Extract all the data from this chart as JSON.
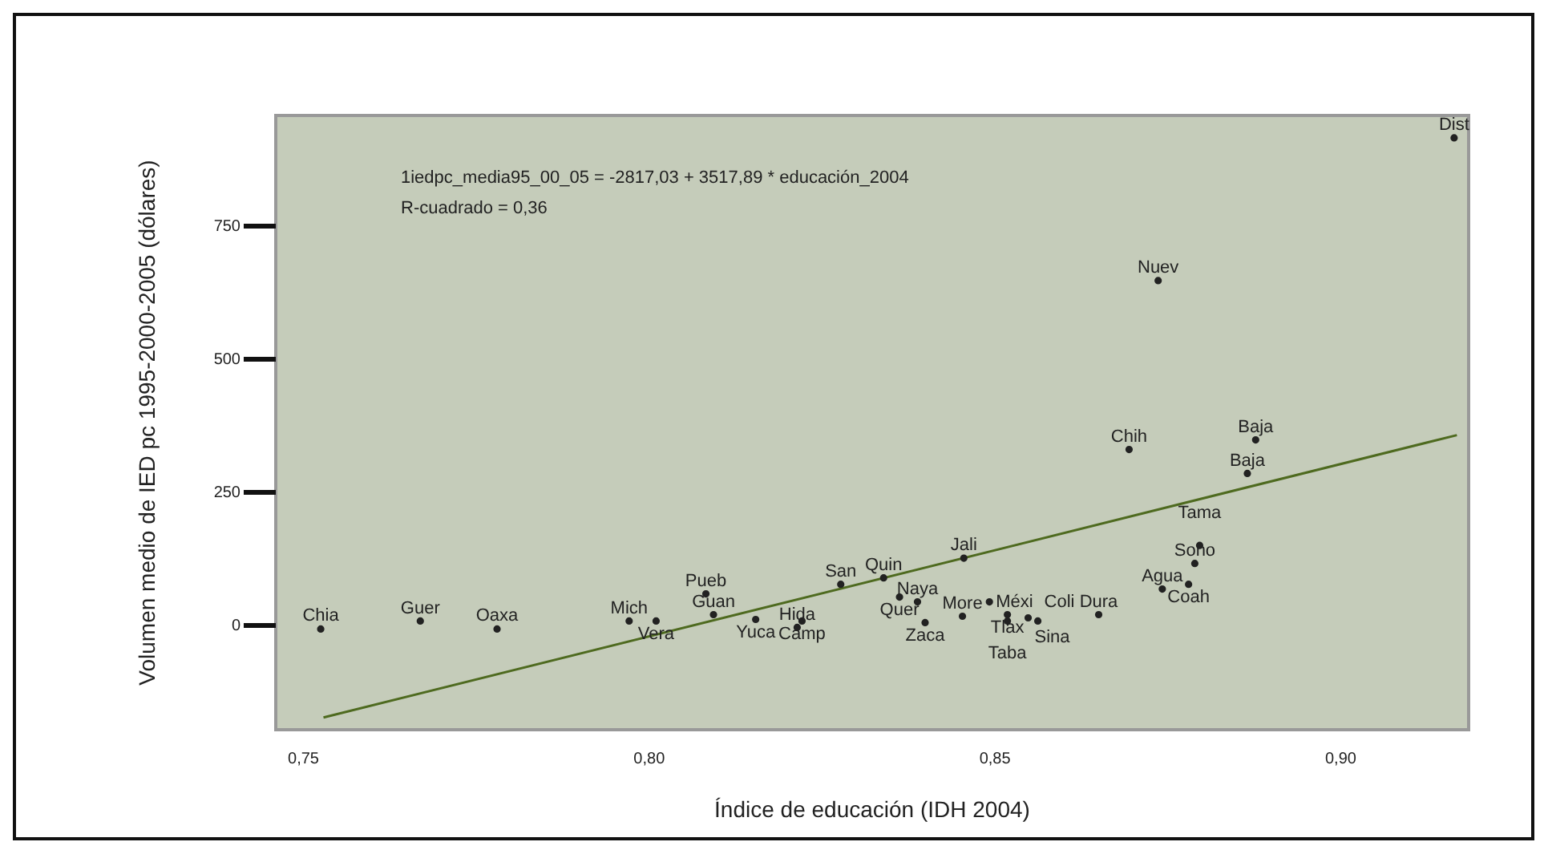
{
  "chart_data": {
    "type": "scatter",
    "xlabel": "Índice de educación (IDH 2004)",
    "ylabel": "Volumen medio de IED pc 1995-2000-2005 (dólares)",
    "annotations": [
      "1iedpc_media95_00_05 = -2817,03 + 3517,89 * educación_2004",
      "R-cuadrado = 0,36"
    ],
    "xlim": [
      0.746,
      0.9185
    ],
    "ylim": [
      -195,
      958
    ],
    "xticks": [
      {
        "value": 0.75,
        "label": "0,75"
      },
      {
        "value": 0.8,
        "label": "0,80"
      },
      {
        "value": 0.85,
        "label": "0,85"
      },
      {
        "value": 0.9,
        "label": "0,90"
      }
    ],
    "yticks": [
      0,
      250,
      500,
      750
    ],
    "series": [
      {
        "type": "scatter",
        "marker": "circle",
        "color": "#222222",
        "x": [
          0.7525,
          0.7669,
          0.778,
          0.7971,
          0.801,
          0.8082,
          0.8093,
          0.8154,
          0.8221,
          0.8214,
          0.8277,
          0.8339,
          0.8362,
          0.8388,
          0.8399,
          0.8455,
          0.8492,
          0.8453,
          0.8518,
          0.8518,
          0.8548,
          0.8562,
          0.865,
          0.8742,
          0.878,
          0.8789,
          0.8796,
          0.8694,
          0.8877,
          0.8865,
          0.8736,
          0.9164
        ],
        "values": [
          -6,
          9,
          -6,
          9,
          9,
          60,
          21,
          12,
          9,
          -3,
          78,
          90,
          54,
          45,
          6,
          127,
          45,
          18,
          21,
          9,
          15,
          9,
          21,
          69,
          78,
          117,
          151,
          331,
          349,
          286,
          648,
          916
        ],
        "value_labels": [
          "Chia",
          "Guer",
          "Oaxa",
          "Mich",
          "Vera",
          "Pueb",
          "Guan",
          "Yuca",
          "Camp",
          "Hida",
          "San",
          "Quin",
          "Quer",
          "Naya",
          "Zaca",
          "Jali",
          "Méxi",
          "More",
          "Tlax",
          "Taba",
          "Sina",
          "Coli",
          "Dura",
          "Agua",
          "Coah",
          "Sono",
          "Tama",
          "Chih",
          "Baja",
          "Baja",
          "Nuev",
          "Dist"
        ]
      },
      {
        "type": "line",
        "marker": "none",
        "color": "#4e6a1f",
        "x": [
          0.7529,
          0.9168
        ],
        "values": [
          -172,
          358
        ]
      }
    ]
  }
}
